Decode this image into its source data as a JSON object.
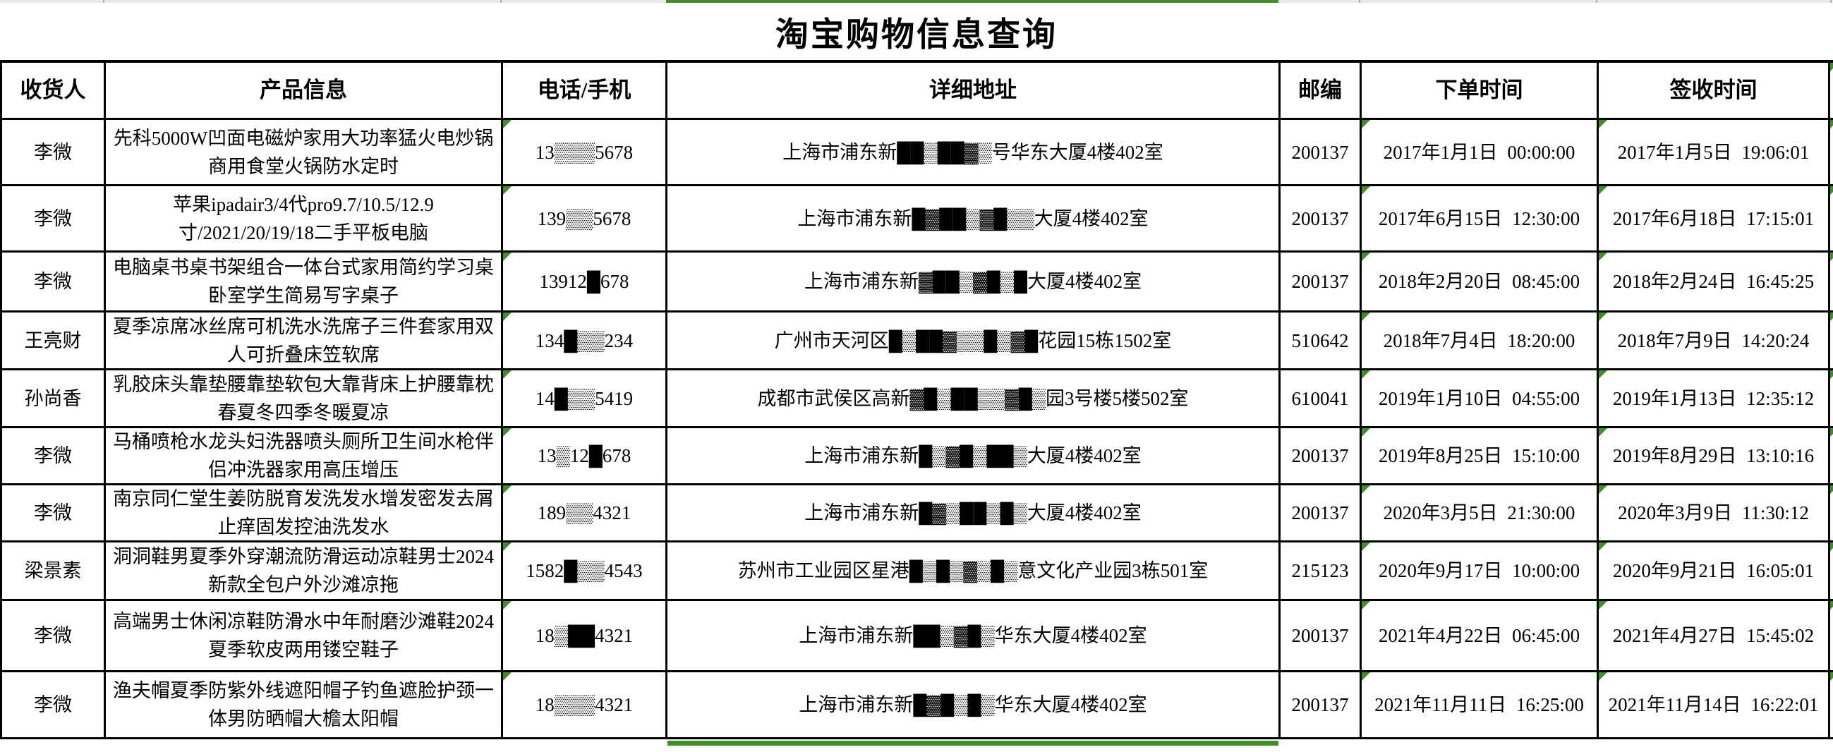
{
  "app": {
    "title": "淘宝购物信息查询"
  },
  "table": {
    "columns": [
      {
        "key": "recipient",
        "label": "收货人"
      },
      {
        "key": "product",
        "label": "产品信息"
      },
      {
        "key": "phone",
        "label": "电话/手机"
      },
      {
        "key": "address",
        "label": "详细地址"
      },
      {
        "key": "zip",
        "label": "邮编"
      },
      {
        "key": "order_time",
        "label": "下单时间"
      },
      {
        "key": "sign_time",
        "label": "签收时间"
      }
    ],
    "error_indicator_columns": [
      "phone",
      "order_time",
      "sign_time"
    ],
    "rows": [
      {
        "recipient": "李微",
        "product": "先科5000W凹面电磁炉家用大功率猛火电炒锅商用食堂火锅防水定时",
        "phone": "13▒▒▒5678",
        "address": "上海市浦东新██▒██▓▒号华东大厦4楼402室",
        "zip": "200137",
        "order_time": "2017年1月1日 00:00:00",
        "sign_time": "2017年1月5日 19:06:01"
      },
      {
        "recipient": "李微",
        "product": "苹果ipadair3/4代pro9.7/10.5/12.9寸/2021/20/19/18二手平板电脑",
        "phone": "139▒▒5678",
        "address": "上海市浦东新█▓██▒▓█▒▒大厦4楼402室",
        "zip": "200137",
        "order_time": "2017年6月15日 12:30:00",
        "sign_time": "2017年6月18日 17:15:01"
      },
      {
        "recipient": "李微",
        "product": "电脑桌书桌书架组合一体台式家用简约学习桌卧室学生简易写字桌子",
        "phone": "13912█678",
        "address": "上海市浦东新▓██▒▓█▒█大厦4楼402室",
        "zip": "200137",
        "order_time": "2018年2月20日 08:45:00",
        "sign_time": "2018年2月24日 16:45:25"
      },
      {
        "recipient": "王亮财",
        "product": "夏季凉席冰丝席可机洗水洗席子三件套家用双人可折叠床笠软席",
        "phone": "134█▒▒234",
        "address": "广州市天河区█▒██▓▒▒█▒▓█花园15栋1502室",
        "zip": "510642",
        "order_time": "2018年7月4日 18:20:00",
        "sign_time": "2018年7月9日 14:20:24"
      },
      {
        "recipient": "孙尚香",
        "product": "乳胶床头靠垫腰靠垫软包大靠背床上护腰靠枕春夏冬四季冬暖夏凉",
        "phone": "14█▒▒5419",
        "address": "成都市武侯区高新▓█▒██▒▒▓█▒园3号楼5楼502室",
        "zip": "610041",
        "order_time": "2019年1月10日 04:55:00",
        "sign_time": "2019年1月13日 12:35:12"
      },
      {
        "recipient": "李微",
        "product": "马桶喷枪水龙头妇洗器喷头厕所卫生间水枪伴侣冲洗器家用高压增压",
        "phone": "13▒12█678",
        "address": "上海市浦东新█▒▓█▒██▒大厦4楼402室",
        "zip": "200137",
        "order_time": "2019年8月25日 15:10:00",
        "sign_time": "2019年8月29日 13:10:16"
      },
      {
        "recipient": "李微",
        "product": "南京同仁堂生姜防脱育发洗发水增发密发去屑止痒固发控油洗发水",
        "phone": "189▒▒4321",
        "address": "上海市浦东新█▓▒██▒█▒大厦4楼402室",
        "zip": "200137",
        "order_time": "2020年3月5日 21:30:00",
        "sign_time": "2020年3月9日 11:30:12"
      },
      {
        "recipient": "梁景素",
        "product": "洞洞鞋男夏季外穿潮流防滑运动凉鞋男士2024新款全包户外沙滩凉拖",
        "phone": "1582█▒▒4543",
        "address": "苏州市工业园区星港█▒█▒▓▒█▒意文化产业园3栋501室",
        "zip": "215123",
        "order_time": "2020年9月17日 10:00:00",
        "sign_time": "2020年9月21日 16:05:01"
      },
      {
        "recipient": "李微",
        "product": "高端男士休闲凉鞋防滑水中年耐磨沙滩鞋2024夏季软皮两用镂空鞋子",
        "phone": "18▒██4321",
        "address": "上海市浦东新██▒▓█▒华东大厦4楼402室",
        "zip": "200137",
        "order_time": "2021年4月22日 06:45:00",
        "sign_time": "2021年4月27日 15:45:02"
      },
      {
        "recipient": "李微",
        "product": "渔夫帽夏季防紫外线遮阳帽子钓鱼遮脸护颈一体男防晒帽大檐太阳帽",
        "phone": "18▒▒▒4321",
        "address": "上海市浦东新█▓█▒█▒华东大厦4楼402室",
        "zip": "200137",
        "order_time": "2021年11月11日 16:25:00",
        "sign_time": "2021年11月14日 16:22:01"
      }
    ]
  },
  "colors": {
    "indicator_green": "#3f8e28",
    "grid_line": "#000000",
    "top_strip_grey": "#e9e9e9"
  }
}
